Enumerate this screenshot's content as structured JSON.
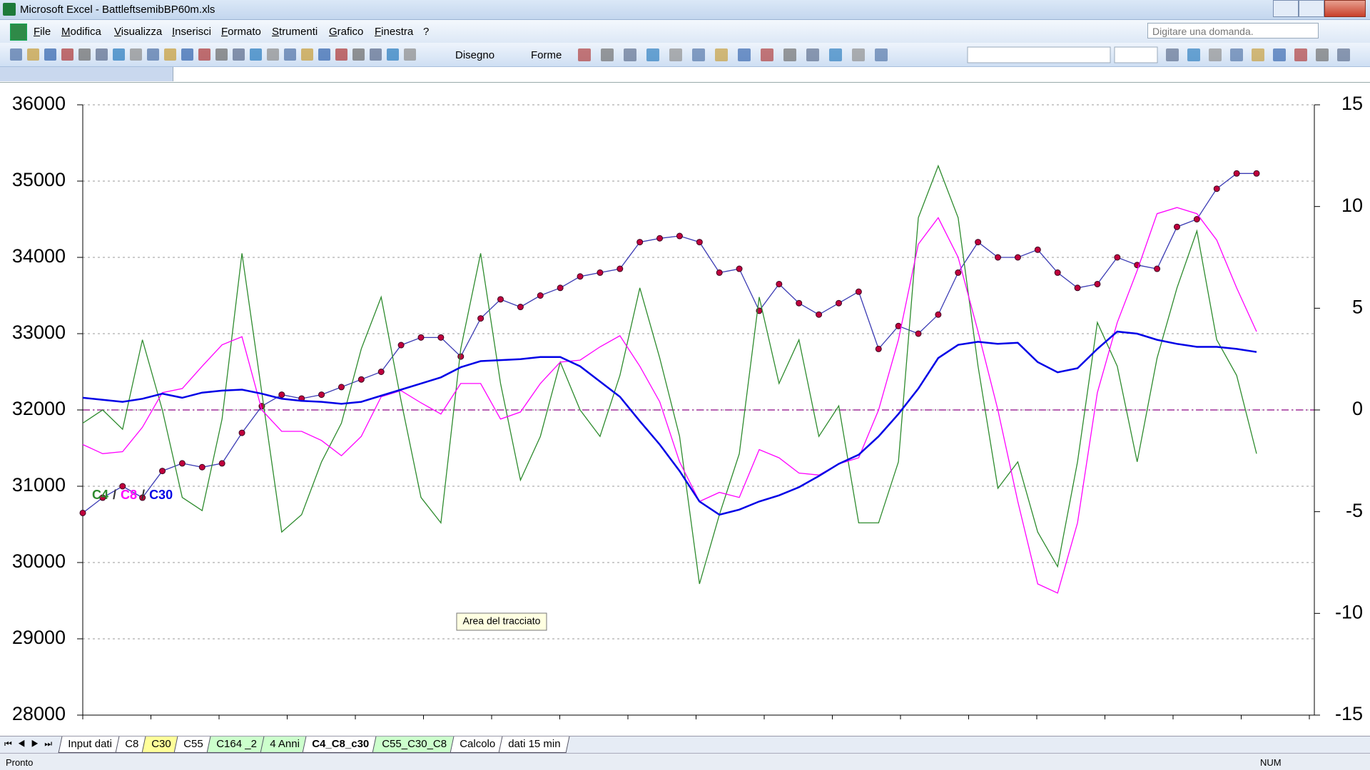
{
  "window": {
    "title": "Microsoft Excel - BattleftsemibBP60m.xls"
  },
  "menu": [
    "File",
    "Modifica",
    "Visualizza",
    "Inserisci",
    "Formato",
    "Strumenti",
    "Grafico",
    "Finestra",
    "?"
  ],
  "help_box": "Digitare una domanda.",
  "toolbar": {
    "drawing": "Disegno",
    "shapes": "Forme"
  },
  "tooltip": "Area del tracciato",
  "sheet_tabs": [
    {
      "label": "Input dati",
      "color": "#ffffff"
    },
    {
      "label": "C8",
      "color": "#ffffff"
    },
    {
      "label": "C30",
      "color": "#ffff99"
    },
    {
      "label": "C55",
      "color": "#ffffff"
    },
    {
      "label": "C164 _2",
      "color": "#ccffcc"
    },
    {
      "label": "4 Anni",
      "color": "#ccffcc"
    },
    {
      "label": "C4_C8_c30",
      "color": "#ffffff",
      "active": true
    },
    {
      "label": "C55_C30_C8",
      "color": "#ccffcc"
    },
    {
      "label": "Calcolo",
      "color": "#ffffff"
    },
    {
      "label": "dati 15 min",
      "color": "#ffffff"
    }
  ],
  "status": {
    "left": "Pronto",
    "right": "NUM"
  },
  "chart_data": {
    "type": "line",
    "categories": [
      null,
      null,
      null,
      null,
      null,
      null,
      null,
      null,
      null,
      null,
      null,
      null,
      null,
      null,
      null,
      null,
      null,
      null,
      null,
      null,
      null,
      null,
      null,
      null,
      null,
      null,
      null,
      null,
      null,
      null,
      null,
      null,
      null,
      null,
      null,
      null,
      null,
      null,
      null,
      null,
      null,
      null,
      null,
      null,
      null,
      null,
      null,
      null,
      null,
      null,
      null,
      null,
      null,
      null,
      null,
      null,
      null,
      null,
      null,
      null
    ],
    "ylim": [
      28000,
      36000
    ],
    "yticks": [
      28000,
      29000,
      30000,
      31000,
      32000,
      33000,
      34000,
      35000,
      36000
    ],
    "y2lim": [
      -15,
      15
    ],
    "y2ticks": [
      -15,
      -10,
      -5,
      0,
      5,
      10,
      15
    ],
    "grid": true,
    "y2_zero_line": true,
    "zero_line_color": "#a0309a",
    "legend_separator": "/",
    "series": [
      {
        "color": "#3c3cb4",
        "marker_color": "#c0003c",
        "markers": true,
        "values": [
          30650,
          30850,
          31000,
          30850,
          31200,
          31300,
          31250,
          31300,
          31700,
          32050,
          32200,
          32150,
          32200,
          32300,
          32400,
          32500,
          32850,
          32950,
          32950,
          32700,
          33200,
          33450,
          33350,
          33500,
          33600,
          33750,
          33800,
          33850,
          34200,
          34250,
          34280,
          34200,
          33800,
          33850,
          33300,
          33650,
          33400,
          33250,
          33400,
          33550,
          32800,
          33100,
          33000,
          33250,
          33800,
          34200,
          34000,
          34000,
          34100,
          33800,
          33600,
          33650,
          34000,
          33900,
          33850,
          34400,
          34500,
          34900,
          35100,
          35100
        ]
      },
      {
        "name": "C4",
        "color": "#2e8b2e",
        "axis": "y2",
        "values": [
          -0.65,
          0,
          -0.95,
          3.45,
          0,
          -4.3,
          -4.95,
          -0.45,
          7.7,
          0.85,
          -6.0,
          -5.15,
          -2.55,
          -0.65,
          3.0,
          5.55,
          0.45,
          -4.3,
          -5.55,
          3.0,
          7.7,
          1.3,
          -3.45,
          -1.3,
          2.35,
          0,
          -1.3,
          1.7,
          6.0,
          2.55,
          -1.3,
          -8.55,
          -5.15,
          -2.15,
          5.55,
          1.3,
          3.45,
          -1.3,
          0.2,
          -5.55,
          -5.55,
          -2.55,
          9.45,
          12.0,
          9.45,
          2.15,
          -3.85,
          -2.55,
          -6.0,
          -7.7,
          -2.55,
          4.3,
          2.15,
          -2.55,
          2.55,
          6.0,
          8.8,
          3.45,
          1.7,
          -2.15
        ]
      },
      {
        "name": "C8",
        "color": "#ff00ff",
        "axis": "y2",
        "values": [
          -1.7,
          -2.15,
          -2.05,
          -0.85,
          0.85,
          1.05,
          2.15,
          3.2,
          3.6,
          0,
          -1.05,
          -1.05,
          -1.5,
          -2.25,
          -1.3,
          0.65,
          0.95,
          0.35,
          -0.2,
          1.3,
          1.3,
          -0.45,
          -0.1,
          1.3,
          2.35,
          2.45,
          3.1,
          3.65,
          2.15,
          0.4,
          -2.55,
          -4.5,
          -4.05,
          -4.3,
          -1.95,
          -2.35,
          -3.1,
          -3.2,
          -2.65,
          -2.35,
          0,
          3.45,
          8.15,
          9.45,
          7.5,
          3.85,
          0,
          -4.5,
          -8.55,
          -9.0,
          -5.55,
          0.85,
          4.3,
          6.85,
          9.65,
          9.95,
          9.65,
          8.35,
          6.0,
          3.85
        ]
      },
      {
        "name": "C30",
        "color": "#0000e6",
        "axis": "y2",
        "values": [
          0.6,
          0.5,
          0.4,
          0.55,
          0.8,
          0.6,
          0.85,
          0.95,
          1.0,
          0.8,
          0.55,
          0.45,
          0.4,
          0.3,
          0.4,
          0.7,
          1.0,
          1.3,
          1.6,
          2.1,
          2.4,
          2.45,
          2.5,
          2.6,
          2.6,
          2.15,
          1.4,
          0.65,
          -0.55,
          -1.7,
          -3.0,
          -4.5,
          -5.15,
          -4.9,
          -4.5,
          -4.2,
          -3.8,
          -3.25,
          -2.65,
          -2.2,
          -1.3,
          -0.2,
          1.05,
          2.55,
          3.2,
          3.35,
          3.25,
          3.3,
          2.35,
          1.85,
          2.05,
          3.0,
          3.85,
          3.75,
          3.45,
          3.25,
          3.1,
          3.1,
          3.0,
          2.85
        ]
      }
    ]
  }
}
